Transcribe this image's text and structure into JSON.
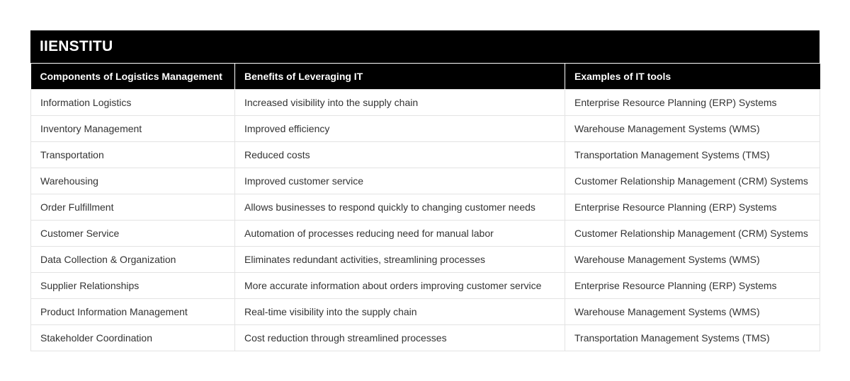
{
  "title": "IIENSTITU",
  "table": {
    "headers": [
      "Components of Logistics Management",
      "Benefits of Leveraging IT",
      "Examples of IT tools"
    ],
    "rows": [
      [
        "Information Logistics",
        "Increased visibility into the supply chain",
        "Enterprise Resource Planning (ERP) Systems"
      ],
      [
        "Inventory Management",
        "Improved efficiency",
        "Warehouse Management Systems (WMS)"
      ],
      [
        "Transportation",
        "Reduced costs",
        "Transportation Management Systems (TMS)"
      ],
      [
        "Warehousing",
        "Improved customer service",
        "Customer Relationship Management (CRM) Systems"
      ],
      [
        "Order Fulfillment",
        "Allows businesses to respond quickly to changing customer needs",
        "Enterprise Resource Planning (ERP) Systems"
      ],
      [
        "Customer Service",
        "Automation of processes reducing need for manual labor",
        "Customer Relationship Management (CRM) Systems"
      ],
      [
        "Data Collection & Organization",
        "Eliminates redundant activities, streamlining processes",
        "Warehouse Management Systems (WMS)"
      ],
      [
        "Supplier Relationships",
        "More accurate information about orders improving customer service",
        "Enterprise Resource Planning (ERP) Systems"
      ],
      [
        "Product Information Management",
        "Real-time visibility into the supply chain",
        "Warehouse Management Systems (WMS)"
      ],
      [
        "Stakeholder Coordination",
        "Cost reduction through streamlined processes",
        "Transportation Management Systems (TMS)"
      ]
    ]
  }
}
